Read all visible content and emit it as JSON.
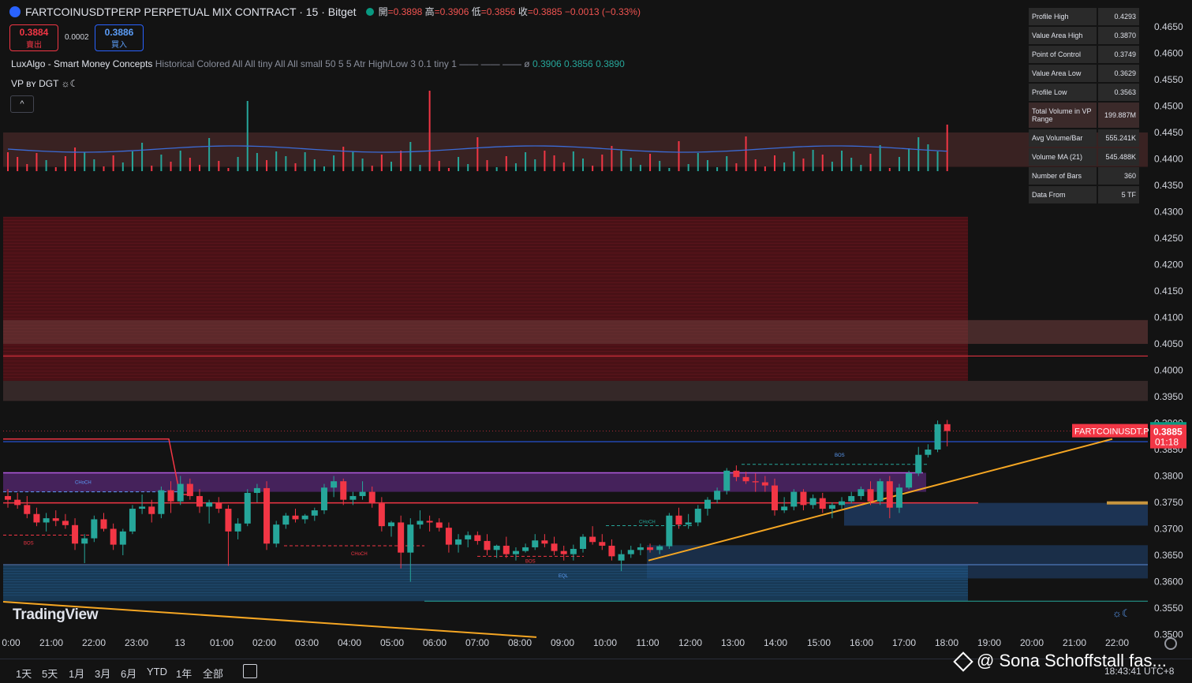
{
  "header": {
    "title": "FARTCOINUSDTPERP PERPETUAL MIX CONTRACT · 15 · Bitget",
    "ohlc": [
      {
        "k": "開",
        "v": "=0.3898"
      },
      {
        "k": "高",
        "v": "=0.3906"
      },
      {
        "k": "低",
        "v": "=0.3856"
      },
      {
        "k": "收",
        "v": "=0.3885"
      }
    ],
    "change": "−0.0013 (−0.33%)",
    "sell_price": "0.3884",
    "sell_label": "賣出",
    "spread": "0.0002",
    "buy_price": "0.3886",
    "buy_label": "買入"
  },
  "indicators": {
    "lux_name": "LuxAlgo - Smart Money Concepts",
    "lux_params": "Historical Colored All All tiny All All small 50 5 5 Atr High/Low 3 0.1 tiny 1 —— —— ——",
    "lux_empty": "ø",
    "lux_v1": "0.3906",
    "lux_v2": "0.3856",
    "lux_v3": "0.3890",
    "vp_name": "VP ʙʏ DGT ☼☾",
    "collapse": "^"
  },
  "vp_table": [
    {
      "label": "Profile High",
      "value": "0.4293"
    },
    {
      "label": "Value Area High",
      "value": "0.3870"
    },
    {
      "label": "Point of Control",
      "value": "0.3749"
    },
    {
      "label": "Value Area Low",
      "value": "0.3629"
    },
    {
      "label": "Profile Low",
      "value": "0.3563"
    },
    {
      "label": "Total Volume in VP Range",
      "value": "199.887M"
    },
    {
      "label": "Avg Volume/Bar",
      "value": "555.241K"
    },
    {
      "label": "Volume MA (21)",
      "value": "545.488K"
    },
    {
      "label": "Number of Bars",
      "value": "360"
    },
    {
      "label": "Data From",
      "value": "5 TF"
    }
  ],
  "chart_data": {
    "type": "candlestick",
    "ylim": [
      0.345,
      0.465
    ],
    "price_ticks": [
      "0.4650",
      "0.4600",
      "0.4550",
      "0.4500",
      "0.4450",
      "0.4400",
      "0.4350",
      "0.4300",
      "0.4250",
      "0.4200",
      "0.4150",
      "0.4100",
      "0.4050",
      "0.4000",
      "0.3950",
      "0.3900",
      "0.3850",
      "0.3800",
      "0.3750",
      "0.3700",
      "0.3650",
      "0.3600",
      "0.3550",
      "0.3500"
    ],
    "time_ticks": [
      "0:00",
      "21:00",
      "22:00",
      "23:00",
      "13",
      "01:00",
      "02:00",
      "03:00",
      "04:00",
      "05:00",
      "06:00",
      "07:00",
      "08:00",
      "09:00",
      "10:00",
      "11:00",
      "12:00",
      "13:00",
      "14:00",
      "15:00",
      "16:00",
      "17:00",
      "18:00",
      "19:00",
      "20:00",
      "21:00",
      "22:00"
    ],
    "candles": [
      [
        0.3762,
        0.3775,
        0.374,
        0.3755
      ],
      [
        0.3755,
        0.3768,
        0.3738,
        0.3745
      ],
      [
        0.3745,
        0.3762,
        0.372,
        0.3728
      ],
      [
        0.3728,
        0.374,
        0.3705,
        0.3712
      ],
      [
        0.3712,
        0.373,
        0.3695,
        0.372
      ],
      [
        0.372,
        0.3735,
        0.3705,
        0.3715
      ],
      [
        0.3715,
        0.3728,
        0.37,
        0.3707
      ],
      [
        0.3707,
        0.372,
        0.366,
        0.3672
      ],
      [
        0.3672,
        0.369,
        0.3635,
        0.3682
      ],
      [
        0.3682,
        0.3725,
        0.3675,
        0.3718
      ],
      [
        0.3718,
        0.373,
        0.3695,
        0.37
      ],
      [
        0.37,
        0.371,
        0.366,
        0.367
      ],
      [
        0.367,
        0.37,
        0.365,
        0.3695
      ],
      [
        0.3695,
        0.3745,
        0.369,
        0.3738
      ],
      [
        0.3738,
        0.3765,
        0.3728,
        0.3742
      ],
      [
        0.3742,
        0.3755,
        0.3712,
        0.3728
      ],
      [
        0.3728,
        0.378,
        0.372,
        0.3773
      ],
      [
        0.3773,
        0.379,
        0.373,
        0.3752
      ],
      [
        0.3752,
        0.38,
        0.3745,
        0.3785
      ],
      [
        0.3785,
        0.3795,
        0.3755,
        0.3762
      ],
      [
        0.3762,
        0.3775,
        0.373,
        0.3742
      ],
      [
        0.3742,
        0.3755,
        0.371,
        0.375
      ],
      [
        0.375,
        0.376,
        0.373,
        0.3738
      ],
      [
        0.3738,
        0.3745,
        0.363,
        0.3695
      ],
      [
        0.3695,
        0.372,
        0.368,
        0.371
      ],
      [
        0.371,
        0.3775,
        0.3705,
        0.3768
      ],
      [
        0.3768,
        0.3785,
        0.375,
        0.3777
      ],
      [
        0.3777,
        0.379,
        0.366,
        0.3672
      ],
      [
        0.3672,
        0.3715,
        0.3665,
        0.3708
      ],
      [
        0.3708,
        0.373,
        0.37,
        0.3725
      ],
      [
        0.3725,
        0.3738,
        0.3712,
        0.3718
      ],
      [
        0.3718,
        0.3728,
        0.371,
        0.3725
      ],
      [
        0.3725,
        0.374,
        0.3715,
        0.3735
      ],
      [
        0.3735,
        0.3785,
        0.3728,
        0.3778
      ],
      [
        0.3778,
        0.38,
        0.376,
        0.379
      ],
      [
        0.379,
        0.3795,
        0.3745,
        0.3755
      ],
      [
        0.3755,
        0.377,
        0.3745,
        0.3762
      ],
      [
        0.3762,
        0.379,
        0.3755,
        0.377
      ],
      [
        0.377,
        0.378,
        0.374,
        0.3748
      ],
      [
        0.3748,
        0.376,
        0.3695,
        0.3705
      ],
      [
        0.3705,
        0.3715,
        0.3685,
        0.3712
      ],
      [
        0.3712,
        0.3725,
        0.3625,
        0.3655
      ],
      [
        0.3655,
        0.372,
        0.36,
        0.3708
      ],
      [
        0.3708,
        0.3735,
        0.37,
        0.3715
      ],
      [
        0.3715,
        0.3725,
        0.3695,
        0.3712
      ],
      [
        0.3712,
        0.372,
        0.3695,
        0.3702
      ],
      [
        0.3702,
        0.3712,
        0.3655,
        0.367
      ],
      [
        0.367,
        0.369,
        0.3655,
        0.368
      ],
      [
        0.368,
        0.3695,
        0.3665,
        0.3688
      ],
      [
        0.3688,
        0.3695,
        0.367,
        0.3677
      ],
      [
        0.3677,
        0.369,
        0.365,
        0.366
      ],
      [
        0.366,
        0.367,
        0.3645,
        0.3668
      ],
      [
        0.3668,
        0.3685,
        0.3645,
        0.3652
      ],
      [
        0.3652,
        0.3665,
        0.364,
        0.3658
      ],
      [
        0.3658,
        0.3672,
        0.3655,
        0.3665
      ],
      [
        0.3665,
        0.369,
        0.366,
        0.3678
      ],
      [
        0.3678,
        0.369,
        0.3665,
        0.3672
      ],
      [
        0.3672,
        0.3685,
        0.365,
        0.3658
      ],
      [
        0.3658,
        0.3668,
        0.364,
        0.3652
      ],
      [
        0.3652,
        0.367,
        0.364,
        0.3662
      ],
      [
        0.3662,
        0.369,
        0.3655,
        0.3685
      ],
      [
        0.3685,
        0.3705,
        0.367,
        0.3675
      ],
      [
        0.3675,
        0.369,
        0.366,
        0.3668
      ],
      [
        0.3668,
        0.368,
        0.364,
        0.3648
      ],
      [
        0.364,
        0.366,
        0.362,
        0.3652
      ],
      [
        0.3652,
        0.3668,
        0.3645,
        0.366
      ],
      [
        0.366,
        0.3672,
        0.365,
        0.3665
      ],
      [
        0.3665,
        0.3672,
        0.3655,
        0.366
      ],
      [
        0.366,
        0.367,
        0.3652,
        0.3667
      ],
      [
        0.3667,
        0.373,
        0.3662,
        0.3725
      ],
      [
        0.3725,
        0.374,
        0.37,
        0.3708
      ],
      [
        0.3708,
        0.3728,
        0.37,
        0.3712
      ],
      [
        0.3712,
        0.3745,
        0.3705,
        0.3738
      ],
      [
        0.3738,
        0.376,
        0.3725,
        0.3755
      ],
      [
        0.3755,
        0.3778,
        0.3748,
        0.3772
      ],
      [
        0.3772,
        0.3815,
        0.3765,
        0.381
      ],
      [
        0.381,
        0.382,
        0.379,
        0.3798
      ],
      [
        0.3798,
        0.3808,
        0.3785,
        0.379
      ],
      [
        0.379,
        0.3805,
        0.377,
        0.3788
      ],
      [
        0.3788,
        0.38,
        0.377,
        0.3782
      ],
      [
        0.3782,
        0.3795,
        0.3725,
        0.3735
      ],
      [
        0.3735,
        0.376,
        0.373,
        0.3742
      ],
      [
        0.3742,
        0.3775,
        0.3735,
        0.377
      ],
      [
        0.377,
        0.3775,
        0.3735,
        0.3745
      ],
      [
        0.3745,
        0.3765,
        0.3738,
        0.3758
      ],
      [
        0.3758,
        0.3768,
        0.373,
        0.3738
      ],
      [
        0.3738,
        0.375,
        0.372,
        0.3745
      ],
      [
        0.3745,
        0.376,
        0.3738,
        0.3752
      ],
      [
        0.3752,
        0.377,
        0.3748,
        0.3762
      ],
      [
        0.3762,
        0.378,
        0.3755,
        0.3775
      ],
      [
        0.3775,
        0.379,
        0.3745,
        0.3752
      ],
      [
        0.3752,
        0.3795,
        0.3745,
        0.379
      ],
      [
        0.379,
        0.38,
        0.372,
        0.374
      ],
      [
        0.374,
        0.3785,
        0.373,
        0.3778
      ],
      [
        0.3778,
        0.381,
        0.3775,
        0.3805
      ],
      [
        0.3805,
        0.3855,
        0.38,
        0.384
      ],
      [
        0.384,
        0.386,
        0.3835,
        0.385
      ],
      [
        0.385,
        0.3905,
        0.3845,
        0.3898
      ],
      [
        0.3898,
        0.3906,
        0.3856,
        0.3885
      ]
    ],
    "levels": [
      0.445,
      0.4385,
      0.429,
      0.4095,
      0.405,
      0.4027,
      0.4003,
      0.398,
      0.3942,
      0.3865,
      0.3806,
      0.377,
      0.3749,
      0.373,
      0.3712,
      0.366,
      0.3632,
      0.363,
      0.3563
    ],
    "labels": {
      "choch1": "CHoCH",
      "choch2": "CHoCH",
      "choch3": "CHoCH",
      "bos1": "BOS",
      "bos2": "BOS",
      "bos3": "BOS",
      "eql": "EQL"
    },
    "last_price": "0.3885",
    "last_price_top": "0.3890",
    "symbol_tag": "FARTCOINUSDT.P",
    "countdown": "01:18"
  },
  "bottom": {
    "timeframes": [
      "1天",
      "5天",
      "1月",
      "3月",
      "6月",
      "YTD",
      "1年",
      "全部"
    ],
    "clock": "18:43:41 UTC+8",
    "watermark": "@ Sona Schoffstall fas..."
  },
  "brand": "TradingView",
  "colors": {
    "up": "#26a69a",
    "down": "#f23645",
    "accent": "#2962ff"
  }
}
